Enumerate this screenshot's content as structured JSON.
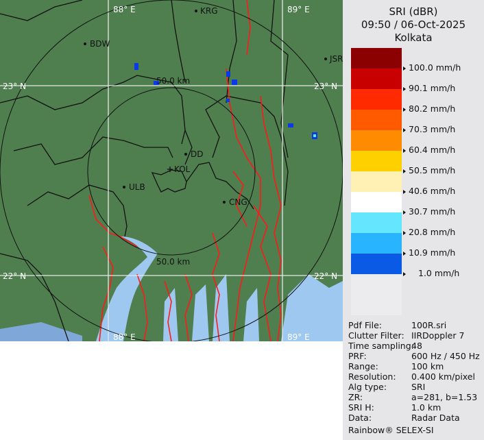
{
  "map": {
    "grid_labels": {
      "lon_88": "88° E",
      "lon_89": "89° E",
      "lat_23": "23° N",
      "lat_22": "22° N"
    },
    "range_rings": [
      "50.0 km",
      "50.0 km"
    ],
    "cities": [
      {
        "name": "KRG"
      },
      {
        "name": "BDW"
      },
      {
        "name": "JSR"
      },
      {
        "name": "DD"
      },
      {
        "name": "KOL"
      },
      {
        "name": "ULB"
      },
      {
        "name": "CNG"
      }
    ],
    "colors": {
      "land": "#4f7f4f",
      "water": "#9ec8f0",
      "rivers": "#ff1a1a",
      "borders": "#111111",
      "grid": "#e8e8e8"
    }
  },
  "legend": {
    "title": "SRI (dBR)",
    "datetime": "09:50 / 06-Oct-2025",
    "station": "Kolkata",
    "bins": [
      {
        "color": "#8b0000",
        "label": ""
      },
      {
        "color": "#c80000",
        "label": "100.0 mm/h"
      },
      {
        "color": "#ff2a00",
        "label": "90.1 mm/h"
      },
      {
        "color": "#ff5a00",
        "label": "80.2 mm/h"
      },
      {
        "color": "#ff8c00",
        "label": "70.3 mm/h"
      },
      {
        "color": "#ffd000",
        "label": "60.4 mm/h"
      },
      {
        "color": "#fff0b4",
        "label": "50.5 mm/h"
      },
      {
        "color": "#ffffff",
        "label": "40.6 mm/h"
      },
      {
        "color": "#64e6ff",
        "label": "30.7 mm/h"
      },
      {
        "color": "#28b4ff",
        "label": "20.8 mm/h"
      },
      {
        "color": "#0a5ae6",
        "label": "10.9 mm/h"
      },
      {
        "color": "#0000b4",
        "label": "1.0 mm/h"
      }
    ]
  },
  "info": [
    {
      "key": "Pdf File:",
      "value": "100R.sri"
    },
    {
      "key": "Clutter Filter:",
      "value": "IIRDoppler 7"
    },
    {
      "key": "Time sampling:",
      "value": "48"
    },
    {
      "key": "PRF:",
      "value": "600 Hz / 450 Hz"
    },
    {
      "key": "Range:",
      "value": "100 km"
    },
    {
      "key": "Resolution:",
      "value": "0.400 km/pixel"
    },
    {
      "key": "Alg type:",
      "value": "SRI"
    },
    {
      "key": "ZR:",
      "value": "a=281, b=1.53"
    },
    {
      "key": "SRI H:",
      "value": "1.0 km"
    },
    {
      "key": "Data:",
      "value": "Radar Data"
    }
  ],
  "footer": "Rainbow® SELEX-SI"
}
